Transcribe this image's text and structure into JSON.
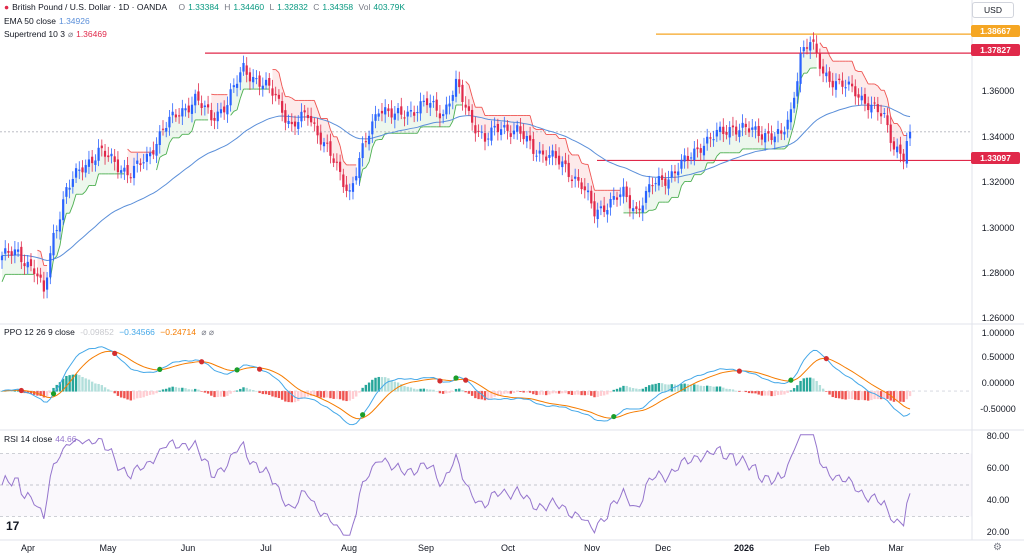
{
  "header": {
    "symbol": "British Pound / U.S. Dollar · 1D · OANDA",
    "o_lbl": "O",
    "o": "1.33384",
    "h_lbl": "H",
    "h": "1.34460",
    "l_lbl": "L",
    "l": "1.32832",
    "c_lbl": "C",
    "c": "1.34358",
    "vol_lbl": "Vol",
    "vol": "403.79K",
    "currency": "USD"
  },
  "indicators": {
    "ema": {
      "label": "EMA 50 close",
      "value": "1.34926"
    },
    "supertrend": {
      "label": "Supertrend 10 3",
      "icon": "⌀",
      "value": "1.36469"
    },
    "ppo": {
      "label": "PPO 12 26 9 close",
      "v1": "-0.09852",
      "v2": "−0.34566",
      "v3": "−0.24714",
      "icons": "⌀ ⌀"
    },
    "rsi": {
      "label": "RSI 14 close",
      "value": "44.66"
    }
  },
  "colors": {
    "up": "#2962ff",
    "down": "#e0294a",
    "ema": "#5b8fd9",
    "ppo_line": "#45a8e8",
    "signal": "#f57c00",
    "st_up": "#4caf50",
    "st_down": "#ef5350",
    "orange_level": "#f5a623",
    "red_level": "#e0294a",
    "rsi": "#9575cd"
  },
  "chart_data": {
    "type": "candlestick",
    "price_axis": {
      "ticks": [
        "1.36000",
        "1.34000",
        "1.32000",
        "1.30000",
        "1.28000",
        "1.26000"
      ],
      "ylim": [
        1.258,
        1.392
      ]
    },
    "levels": [
      {
        "name": "resistance-top",
        "value": "1.38667",
        "color": "orange"
      },
      {
        "name": "resistance",
        "value": "1.37827",
        "color": "red"
      },
      {
        "name": "support",
        "value": "1.33097",
        "color": "red"
      }
    ],
    "x_axis": {
      "labels": [
        "Apr",
        "May",
        "Jun",
        "Jul",
        "Aug",
        "Sep",
        "Oct",
        "Nov",
        "Dec",
        "2026",
        "Feb",
        "Mar"
      ]
    },
    "close_path": [
      {
        "d": 0,
        "c": 1.289
      },
      {
        "d": 5,
        "c": 1.29
      },
      {
        "d": 10,
        "c": 1.283
      },
      {
        "d": 13,
        "c": 1.272
      },
      {
        "d": 16,
        "c": 1.298
      },
      {
        "d": 20,
        "c": 1.318
      },
      {
        "d": 25,
        "c": 1.328
      },
      {
        "d": 30,
        "c": 1.335
      },
      {
        "d": 35,
        "c": 1.33
      },
      {
        "d": 40,
        "c": 1.325
      },
      {
        "d": 45,
        "c": 1.332
      },
      {
        "d": 50,
        "c": 1.345
      },
      {
        "d": 55,
        "c": 1.352
      },
      {
        "d": 60,
        "c": 1.358
      },
      {
        "d": 65,
        "c": 1.35
      },
      {
        "d": 70,
        "c": 1.356
      },
      {
        "d": 75,
        "c": 1.372
      },
      {
        "d": 80,
        "c": 1.365
      },
      {
        "d": 85,
        "c": 1.36
      },
      {
        "d": 90,
        "c": 1.345
      },
      {
        "d": 95,
        "c": 1.352
      },
      {
        "d": 100,
        "c": 1.338
      },
      {
        "d": 105,
        "c": 1.325
      },
      {
        "d": 108,
        "c": 1.317
      },
      {
        "d": 112,
        "c": 1.335
      },
      {
        "d": 117,
        "c": 1.355
      },
      {
        "d": 122,
        "c": 1.35
      },
      {
        "d": 127,
        "c": 1.353
      },
      {
        "d": 132,
        "c": 1.356
      },
      {
        "d": 137,
        "c": 1.352
      },
      {
        "d": 141,
        "c": 1.364
      },
      {
        "d": 145,
        "c": 1.351
      },
      {
        "d": 150,
        "c": 1.34
      },
      {
        "d": 155,
        "c": 1.346
      },
      {
        "d": 160,
        "c": 1.344
      },
      {
        "d": 165,
        "c": 1.336
      },
      {
        "d": 170,
        "c": 1.333
      },
      {
        "d": 175,
        "c": 1.328
      },
      {
        "d": 180,
        "c": 1.32
      },
      {
        "d": 184,
        "c": 1.308
      },
      {
        "d": 188,
        "c": 1.312
      },
      {
        "d": 193,
        "c": 1.316
      },
      {
        "d": 197,
        "c": 1.309
      },
      {
        "d": 202,
        "c": 1.32
      },
      {
        "d": 207,
        "c": 1.324
      },
      {
        "d": 212,
        "c": 1.33
      },
      {
        "d": 217,
        "c": 1.338
      },
      {
        "d": 222,
        "c": 1.342
      },
      {
        "d": 227,
        "c": 1.346
      },
      {
        "d": 232,
        "c": 1.344
      },
      {
        "d": 237,
        "c": 1.343
      },
      {
        "d": 242,
        "c": 1.341
      },
      {
        "d": 245,
        "c": 1.352
      },
      {
        "d": 248,
        "c": 1.378
      },
      {
        "d": 251,
        "c": 1.383
      },
      {
        "d": 255,
        "c": 1.37
      },
      {
        "d": 260,
        "c": 1.364
      },
      {
        "d": 265,
        "c": 1.362
      },
      {
        "d": 270,
        "c": 1.354
      },
      {
        "d": 274,
        "c": 1.35
      },
      {
        "d": 277,
        "c": 1.338
      },
      {
        "d": 280,
        "c": 1.332
      },
      {
        "d": 282,
        "c": 1.3436
      }
    ],
    "ppo_axis": {
      "ticks": [
        "1.00000",
        "0.50000",
        "0.00000",
        "-0.50000"
      ],
      "ylim": [
        -0.75,
        1.2
      ]
    },
    "rsi_axis": {
      "ticks": [
        "80.00",
        "60.00",
        "40.00",
        "20.00"
      ],
      "ylim": [
        15,
        85
      ]
    }
  }
}
